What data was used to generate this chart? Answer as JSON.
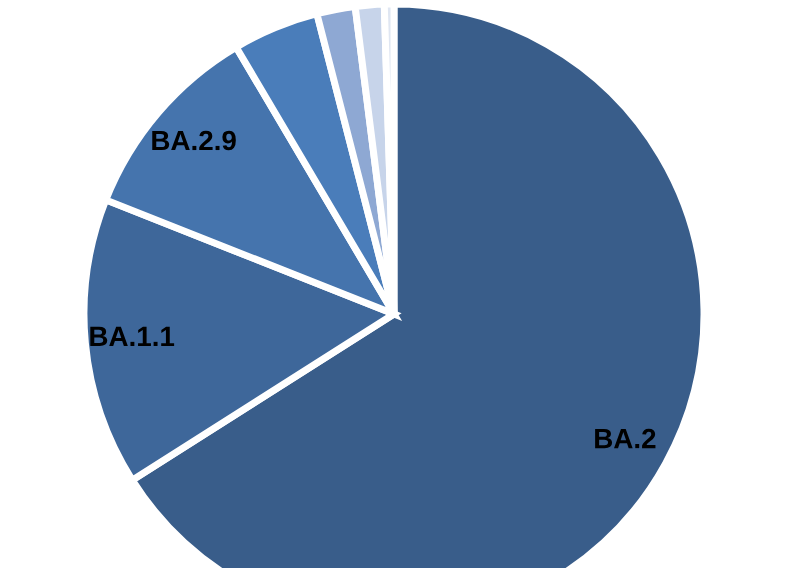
{
  "chart_data": {
    "type": "pie",
    "categories": [
      "BA.2",
      "BA.1.1",
      "BA.2.9",
      null,
      null,
      null,
      null
    ],
    "values": [
      66,
      15,
      10.5,
      4.5,
      2,
      1.5,
      0.5
    ],
    "colors": [
      "#395d8a",
      "#3e679a",
      "#4574ad",
      "#4a7dba",
      "#8ea8d3",
      "#c7d4ea",
      "#dfe6f2"
    ]
  }
}
